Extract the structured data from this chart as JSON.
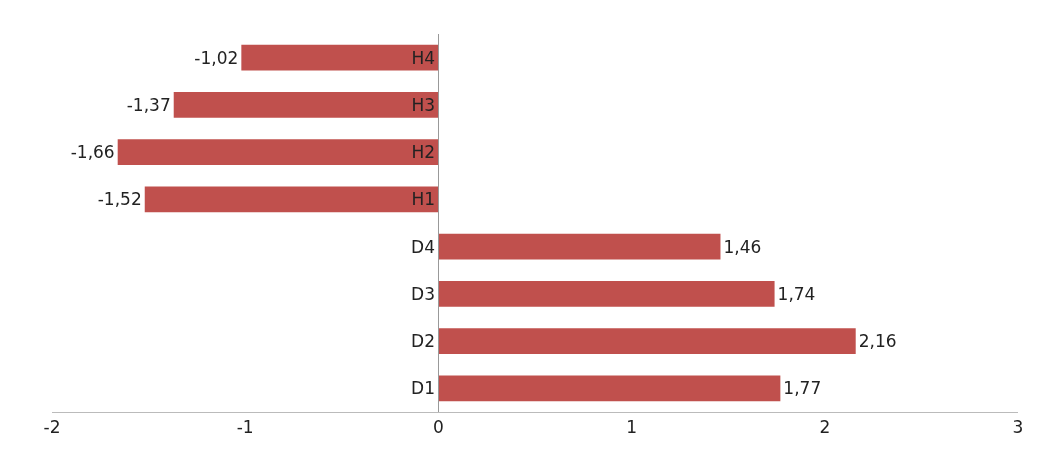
{
  "chart_data": {
    "type": "bar",
    "orientation": "horizontal",
    "categories": [
      "H4",
      "H3",
      "H2",
      "H1",
      "D4",
      "D3",
      "D2",
      "D1"
    ],
    "values": [
      -1.02,
      -1.37,
      -1.66,
      -1.52,
      1.46,
      1.74,
      2.16,
      1.77
    ],
    "value_labels": [
      "-1,02",
      "-1,37",
      "-1,66",
      "-1,52",
      "1,46",
      "1,74",
      "2,16",
      "1,77"
    ],
    "color": "#c0504d",
    "xlim": [
      -2,
      3
    ],
    "xticks": [
      -2,
      -1,
      0,
      1,
      2,
      3
    ]
  }
}
